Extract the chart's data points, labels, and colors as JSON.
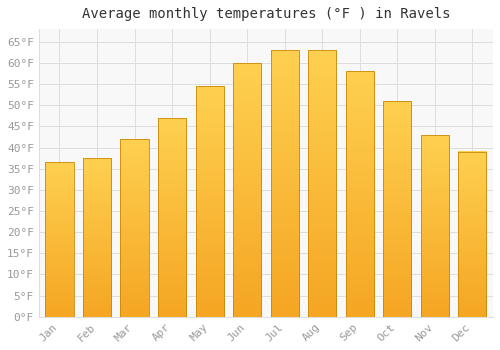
{
  "title": "Average monthly temperatures (°F ) in Ravels",
  "months": [
    "Jan",
    "Feb",
    "Mar",
    "Apr",
    "May",
    "Jun",
    "Jul",
    "Aug",
    "Sep",
    "Oct",
    "Nov",
    "Dec"
  ],
  "values": [
    36.5,
    37.5,
    42,
    47,
    54.5,
    60,
    63,
    63,
    58,
    51,
    43,
    39
  ],
  "bar_color_bottom": "#F5A623",
  "bar_color_top": "#FFD050",
  "bar_edge_color": "#C8880A",
  "background_color": "#FFFFFF",
  "plot_bg_color": "#F8F8F8",
  "grid_color": "#DDDDDD",
  "ylim": [
    0,
    68
  ],
  "yticks": [
    0,
    5,
    10,
    15,
    20,
    25,
    30,
    35,
    40,
    45,
    50,
    55,
    60,
    65
  ],
  "title_fontsize": 10,
  "tick_fontsize": 8,
  "tick_color": "#999999",
  "bar_width": 0.75
}
